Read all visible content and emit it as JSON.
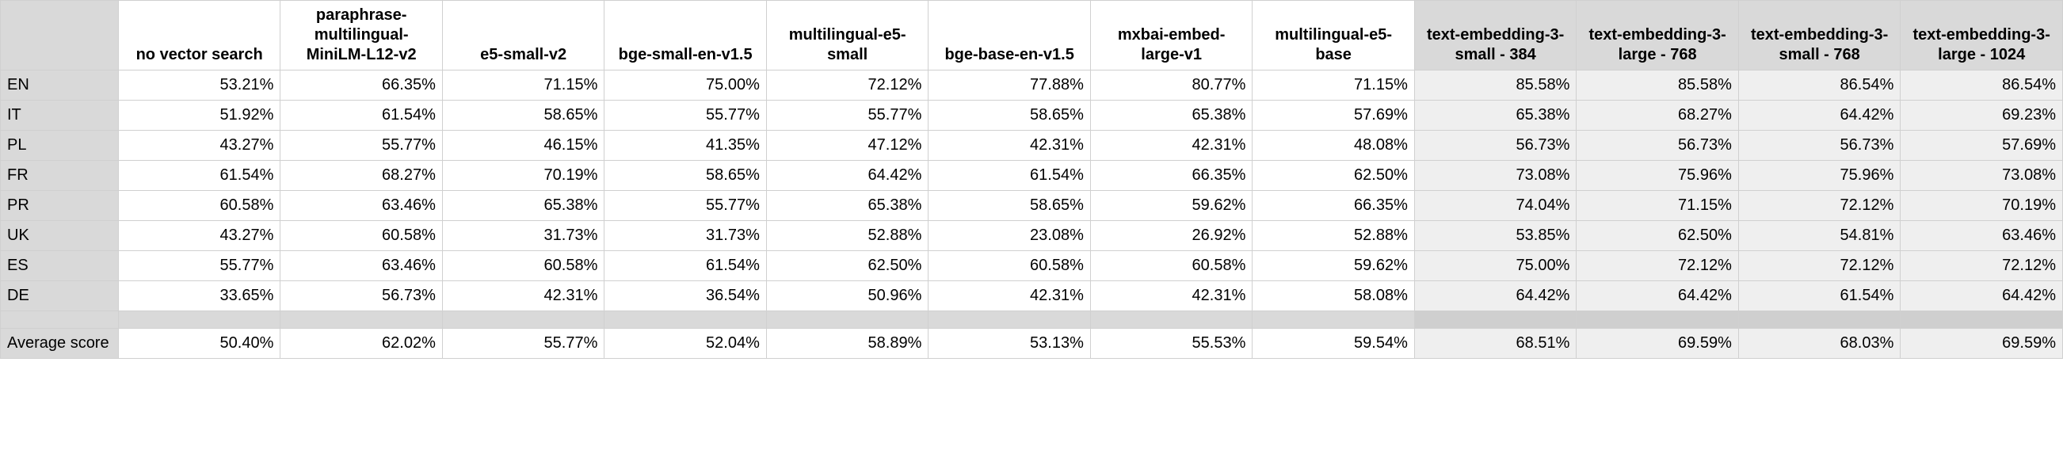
{
  "colors": {
    "header_highlight_bg": "#d9d9d9",
    "row_label_bg": "#d9d9d9",
    "cell_highlight_bg": "#efefef",
    "border": "#d0d0d0",
    "plain_bg": "#ffffff"
  },
  "typography": {
    "font_family": "Arial",
    "font_size_pt": 15,
    "header_weight": "bold"
  },
  "table": {
    "columns": [
      {
        "key": "rowlabel",
        "label": "",
        "highlight": true
      },
      {
        "key": "c1",
        "label": "no vector search",
        "highlight": false
      },
      {
        "key": "c2",
        "label": "paraphrase-multilingual-MiniLM-L12-v2",
        "highlight": false
      },
      {
        "key": "c3",
        "label": "e5-small-v2",
        "highlight": false
      },
      {
        "key": "c4",
        "label": "bge-small-en-v1.5",
        "highlight": false
      },
      {
        "key": "c5",
        "label": "multilingual-e5-small",
        "highlight": false
      },
      {
        "key": "c6",
        "label": "bge-base-en-v1.5",
        "highlight": false
      },
      {
        "key": "c7",
        "label": "mxbai-embed-large-v1",
        "highlight": false
      },
      {
        "key": "c8",
        "label": "multilingual-e5-base",
        "highlight": false
      },
      {
        "key": "c9",
        "label": "text-embedding-3-small - 384",
        "highlight": true
      },
      {
        "key": "c10",
        "label": "text-embedding-3-large - 768",
        "highlight": true
      },
      {
        "key": "c11",
        "label": "text-embedding-3-small - 768",
        "highlight": true
      },
      {
        "key": "c12",
        "label": "text-embedding-3-large - 1024",
        "highlight": true
      }
    ],
    "rows": [
      {
        "label": "EN",
        "values": [
          "53.21%",
          "66.35%",
          "71.15%",
          "75.00%",
          "72.12%",
          "77.88%",
          "80.77%",
          "71.15%",
          "85.58%",
          "85.58%",
          "86.54%",
          "86.54%"
        ]
      },
      {
        "label": "IT",
        "values": [
          "51.92%",
          "61.54%",
          "58.65%",
          "55.77%",
          "55.77%",
          "58.65%",
          "65.38%",
          "57.69%",
          "65.38%",
          "68.27%",
          "64.42%",
          "69.23%"
        ]
      },
      {
        "label": "PL",
        "values": [
          "43.27%",
          "55.77%",
          "46.15%",
          "41.35%",
          "47.12%",
          "42.31%",
          "42.31%",
          "48.08%",
          "56.73%",
          "56.73%",
          "56.73%",
          "57.69%"
        ]
      },
      {
        "label": "FR",
        "values": [
          "61.54%",
          "68.27%",
          "70.19%",
          "58.65%",
          "64.42%",
          "61.54%",
          "66.35%",
          "62.50%",
          "73.08%",
          "75.96%",
          "75.96%",
          "73.08%"
        ]
      },
      {
        "label": "PR",
        "values": [
          "60.58%",
          "63.46%",
          "65.38%",
          "55.77%",
          "65.38%",
          "58.65%",
          "59.62%",
          "66.35%",
          "74.04%",
          "71.15%",
          "72.12%",
          "70.19%"
        ]
      },
      {
        "label": "UK",
        "values": [
          "43.27%",
          "60.58%",
          "31.73%",
          "31.73%",
          "52.88%",
          "23.08%",
          "26.92%",
          "52.88%",
          "53.85%",
          "62.50%",
          "54.81%",
          "63.46%"
        ]
      },
      {
        "label": "ES",
        "values": [
          "55.77%",
          "63.46%",
          "60.58%",
          "61.54%",
          "62.50%",
          "60.58%",
          "60.58%",
          "59.62%",
          "75.00%",
          "72.12%",
          "72.12%",
          "72.12%"
        ]
      },
      {
        "label": "DE",
        "values": [
          "33.65%",
          "56.73%",
          "42.31%",
          "36.54%",
          "50.96%",
          "42.31%",
          "42.31%",
          "58.08%",
          "64.42%",
          "64.42%",
          "61.54%",
          "64.42%"
        ]
      }
    ],
    "summary": {
      "label": "Average score",
      "values": [
        "50.40%",
        "62.02%",
        "55.77%",
        "52.04%",
        "58.89%",
        "53.13%",
        "55.53%",
        "59.54%",
        "68.51%",
        "69.59%",
        "68.03%",
        "69.59%"
      ]
    }
  }
}
